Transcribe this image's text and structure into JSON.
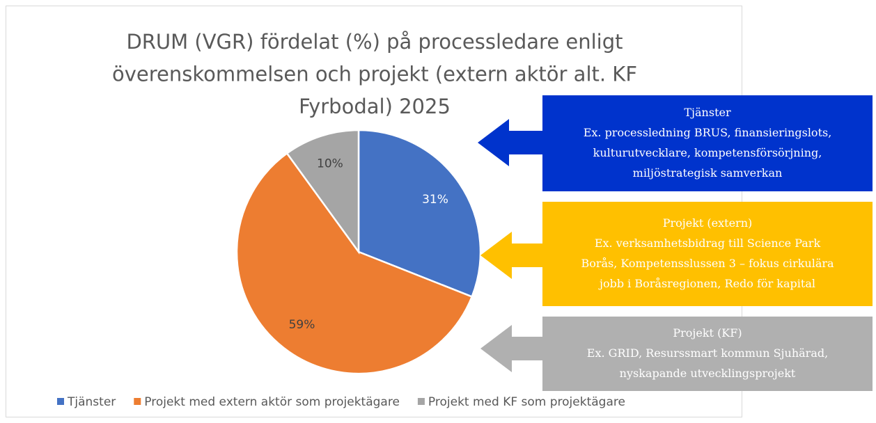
{
  "chart_data": {
    "type": "pie",
    "title": [
      "DRUM (VGR) fördelat (%) på processledare enligt",
      "överenskommelsen och projekt (extern aktör alt. KF",
      "Fyrbodal) 2025"
    ],
    "categories": [
      "Tjänster",
      "Projekt med extern aktör som projektägare",
      "Projekt med KF som projektägare"
    ],
    "values": [
      31,
      59,
      10
    ],
    "value_labels": [
      "31%",
      "59%",
      "10%"
    ],
    "colors": [
      "#4472c4",
      "#ed7d31",
      "#a5a5a5"
    ],
    "legend": "bottom",
    "annotations": [
      {
        "color": "#0033cc",
        "lines": [
          "Tjänster",
          "Ex.  processledning BRUS, finansieringslots,",
          "kulturutvecklare, kompetensförsörjning,",
          "miljöstrategisk samverkan"
        ]
      },
      {
        "color": "#ffc000",
        "lines": [
          "Projekt (extern)",
          "Ex. verksamhetsbidrag till Science Park",
          "Borås, Kompetensslussen 3 – fokus cirkulära",
          "jobb i Boråsregionen, Redo för kapital"
        ]
      },
      {
        "color": "#b0b0b0",
        "lines": [
          "Projekt (KF)",
          "Ex. GRID, Resurssmart kommun Sjuhärad,",
          "nyskapande utvecklingsprojekt"
        ]
      }
    ]
  }
}
